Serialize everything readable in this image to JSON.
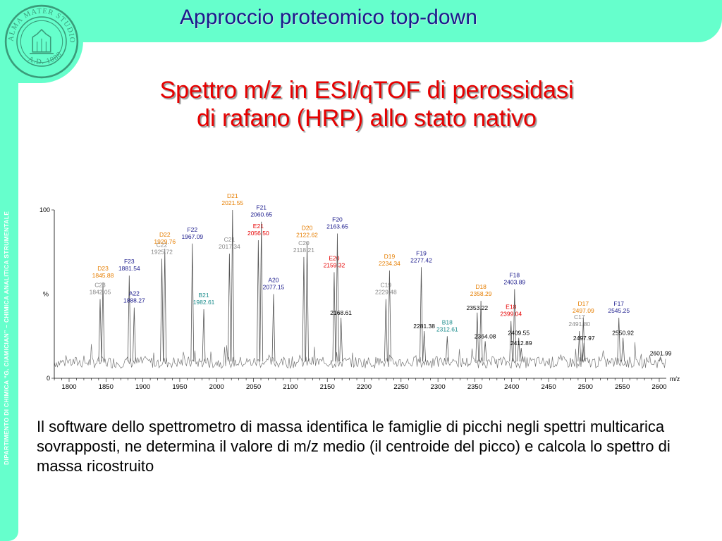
{
  "header": {
    "title": "Approccio proteomico top-down"
  },
  "sidebar": {
    "text": "DIPARTIMENTO DI CHIMICA “G. CIAMICIAN” – CHIMICA ANALITICA STRUMENTALE"
  },
  "logo": {
    "icon": "university-seal-icon",
    "text": "ALMA MATER STUDIORUM · A.D. 1088"
  },
  "slide": {
    "title_line1": "Spettro m/z in ESI/qTOF di perossidasi",
    "title_line2": "di rafano (HRP) allo stato nativo",
    "body": "Il software dello spettrometro di massa identifica le famiglie di picchi negli spettri multicarica sovrapposti, ne determina il valore di m/z medio (il centroide del picco) e calcola lo spettro di massa ricostruito"
  },
  "colors": {
    "accent": "#66ffcc",
    "title": "#1a1a8c",
    "red": "#e60000",
    "D": "#e67e00",
    "F": "#1a1a8c",
    "E": "#e60000",
    "C": "#888888",
    "A": "#1a1a8c",
    "B": "#1a8c8c",
    "plain": "#000000"
  },
  "chart_data": {
    "type": "line",
    "xlabel": "m/z",
    "ylabel": "%",
    "xlim": [
      1780,
      2620
    ],
    "ylim": [
      0,
      100
    ],
    "xticks": [
      1800,
      1850,
      1900,
      1950,
      2000,
      2050,
      2100,
      2150,
      2200,
      2250,
      2300,
      2350,
      2400,
      2450,
      2500,
      2550,
      2600
    ],
    "yticks": [
      0,
      100
    ],
    "peaks": [
      {
        "x": 1842.05,
        "y": 47,
        "ion": "C23",
        "mz": "1842.05",
        "family": "C"
      },
      {
        "x": 1845.88,
        "y": 57,
        "ion": "D23",
        "mz": "1845.88",
        "family": "D"
      },
      {
        "x": 1881.54,
        "y": 61,
        "ion": "F23",
        "mz": "1881.54",
        "family": "F"
      },
      {
        "x": 1888.27,
        "y": 42,
        "ion": "A22",
        "mz": "1888.27",
        "family": "A"
      },
      {
        "x": 1925.72,
        "y": 71,
        "ion": "C22",
        "mz": "1925.72",
        "family": "C"
      },
      {
        "x": 1929.76,
        "y": 77,
        "ion": "D22",
        "mz": "1929.76",
        "family": "D"
      },
      {
        "x": 1967.09,
        "y": 80,
        "ion": "F22",
        "mz": "1967.09",
        "family": "F"
      },
      {
        "x": 1982.61,
        "y": 41,
        "ion": "B21",
        "mz": "1982.61",
        "family": "B"
      },
      {
        "x": 2017.34,
        "y": 74,
        "ion": "C21",
        "mz": "2017.34",
        "family": "C"
      },
      {
        "x": 2021.55,
        "y": 100,
        "ion": "D21",
        "mz": "2021.55",
        "family": "D"
      },
      {
        "x": 2056.5,
        "y": 82,
        "ion": "E21",
        "mz": "2056.50",
        "family": "E"
      },
      {
        "x": 2060.65,
        "y": 93,
        "ion": "F21",
        "mz": "2060.65",
        "family": "F"
      },
      {
        "x": 2077.15,
        "y": 50,
        "ion": "A20",
        "mz": "2077.15",
        "family": "A"
      },
      {
        "x": 2118.21,
        "y": 72,
        "ion": "C20",
        "mz": "2118.21",
        "family": "C"
      },
      {
        "x": 2122.62,
        "y": 81,
        "ion": "D20",
        "mz": "2122.62",
        "family": "D"
      },
      {
        "x": 2159.32,
        "y": 63,
        "ion": "E20",
        "mz": "2159.32",
        "family": "E"
      },
      {
        "x": 2163.65,
        "y": 86,
        "ion": "F20",
        "mz": "2163.65",
        "family": "F"
      },
      {
        "x": 2168.61,
        "y": 36,
        "ion": "",
        "mz": "2168.61",
        "family": "plain"
      },
      {
        "x": 2229.48,
        "y": 47,
        "ion": "C19",
        "mz": "2229.48",
        "family": "C"
      },
      {
        "x": 2234.34,
        "y": 64,
        "ion": "D19",
        "mz": "2234.34",
        "family": "D"
      },
      {
        "x": 2277.42,
        "y": 66,
        "ion": "F19",
        "mz": "2277.42",
        "family": "F"
      },
      {
        "x": 2281.38,
        "y": 28,
        "ion": "",
        "mz": "2281.38",
        "family": "plain"
      },
      {
        "x": 2312.61,
        "y": 25,
        "ion": "B18",
        "mz": "2312.61",
        "family": "B"
      },
      {
        "x": 2353.22,
        "y": 39,
        "ion": "",
        "mz": "2353.22",
        "family": "plain"
      },
      {
        "x": 2358.29,
        "y": 46,
        "ion": "D18",
        "mz": "2358.29",
        "family": "D"
      },
      {
        "x": 2364.08,
        "y": 22,
        "ion": "",
        "mz": "2364.08",
        "family": "plain"
      },
      {
        "x": 2399.04,
        "y": 34,
        "ion": "E18",
        "mz": "2399.04",
        "family": "E"
      },
      {
        "x": 2403.89,
        "y": 53,
        "ion": "F18",
        "mz": "2403.89",
        "family": "F"
      },
      {
        "x": 2409.55,
        "y": 24,
        "ion": "",
        "mz": "2409.55",
        "family": "plain"
      },
      {
        "x": 2412.89,
        "y": 18,
        "ion": "",
        "mz": "2412.89",
        "family": "plain"
      },
      {
        "x": 2491.8,
        "y": 28,
        "ion": "C17",
        "mz": "2491.80",
        "family": "C"
      },
      {
        "x": 2497.09,
        "y": 36,
        "ion": "D17",
        "mz": "2497.09",
        "family": "D"
      },
      {
        "x": 2497.97,
        "y": 21,
        "ion": "",
        "mz": "2497.97",
        "family": "plain"
      },
      {
        "x": 2545.25,
        "y": 36,
        "ion": "F17",
        "mz": "2545.25",
        "family": "F"
      },
      {
        "x": 2550.92,
        "y": 24,
        "ion": "",
        "mz": "2550.92",
        "family": "plain"
      },
      {
        "x": 2601.99,
        "y": 12,
        "ion": "",
        "mz": "2601.99",
        "family": "plain"
      }
    ]
  }
}
